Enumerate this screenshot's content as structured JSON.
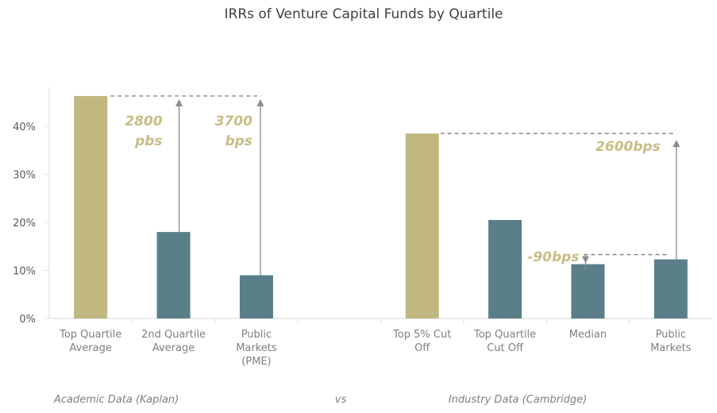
{
  "chart_data": {
    "type": "bar",
    "title": "IRRs of Venture Capital Funds by Quartile",
    "ylim": [
      0,
      48
    ],
    "yticks": [
      0,
      10,
      20,
      30,
      40
    ],
    "ytick_labels": [
      "0%",
      "10%",
      "20%",
      "30%",
      "40%"
    ],
    "categories": [
      [
        "Top Quartile",
        "Average"
      ],
      [
        "2nd Quartile",
        "Average"
      ],
      [
        "Public",
        "Markets",
        "(PME)"
      ],
      [],
      [
        "Top 5% Cut",
        "Off"
      ],
      [
        "Top Quartile",
        "Cut Off"
      ],
      [
        "Median"
      ],
      [
        "Public",
        "Markets"
      ]
    ],
    "values": [
      46.3,
      18.0,
      9.0,
      null,
      38.5,
      20.5,
      11.3,
      12.3
    ],
    "bar_colors": [
      "#c0b880",
      "#5a7f89",
      "#5a7f89",
      null,
      "#c0b880",
      "#5a7f89",
      "#5a7f89",
      "#5a7f89"
    ],
    "group_labels": {
      "left": "Academic Data (Kaplan)",
      "middle": "vs",
      "right": "Industry Data (Cambridge)"
    },
    "annotations": [
      {
        "lines": [
          "2800",
          "pbs"
        ],
        "from_value": 18.0,
        "to_value": 46.3
      },
      {
        "lines": [
          "3700",
          "bps"
        ],
        "from_value": 9.0,
        "to_value": 46.3
      },
      {
        "lines": [
          "2600bps"
        ],
        "from_value": 12.3,
        "to_value": 38.5
      },
      {
        "lines": [
          "-90bps"
        ],
        "from_value": 12.3,
        "to_value": 11.3
      }
    ],
    "colors": {
      "gold": "#c0b880",
      "teal": "#5a7f89",
      "annotation_text": "#c8bd84",
      "arrow": "#8c8c8c",
      "axis": "#d9d9d9"
    }
  }
}
